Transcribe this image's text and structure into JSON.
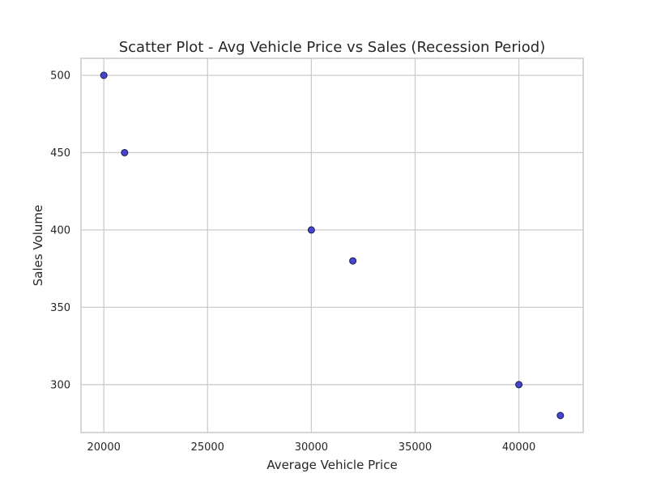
{
  "chart_data": {
    "type": "scatter",
    "title": "Scatter Plot - Avg Vehicle Price vs Sales (Recession Period)",
    "xlabel": "Average Vehicle Price",
    "ylabel": "Sales Volume",
    "xlim": [
      18900,
      43100
    ],
    "ylim": [
      269,
      511
    ],
    "xticks": [
      20000,
      25000,
      30000,
      35000,
      40000
    ],
    "yticks": [
      300,
      350,
      400,
      450,
      500
    ],
    "grid": true,
    "points": [
      {
        "x": 20000,
        "y": 500
      },
      {
        "x": 21000,
        "y": 450
      },
      {
        "x": 30000,
        "y": 400
      },
      {
        "x": 32000,
        "y": 380
      },
      {
        "x": 40000,
        "y": 300
      },
      {
        "x": 42000,
        "y": 280
      }
    ],
    "colors": {
      "point_fill": "#3333cc",
      "point_stroke": "#1a1a4d",
      "grid": "#cccccc",
      "frame": "#cccccc",
      "text": "#262626"
    }
  }
}
